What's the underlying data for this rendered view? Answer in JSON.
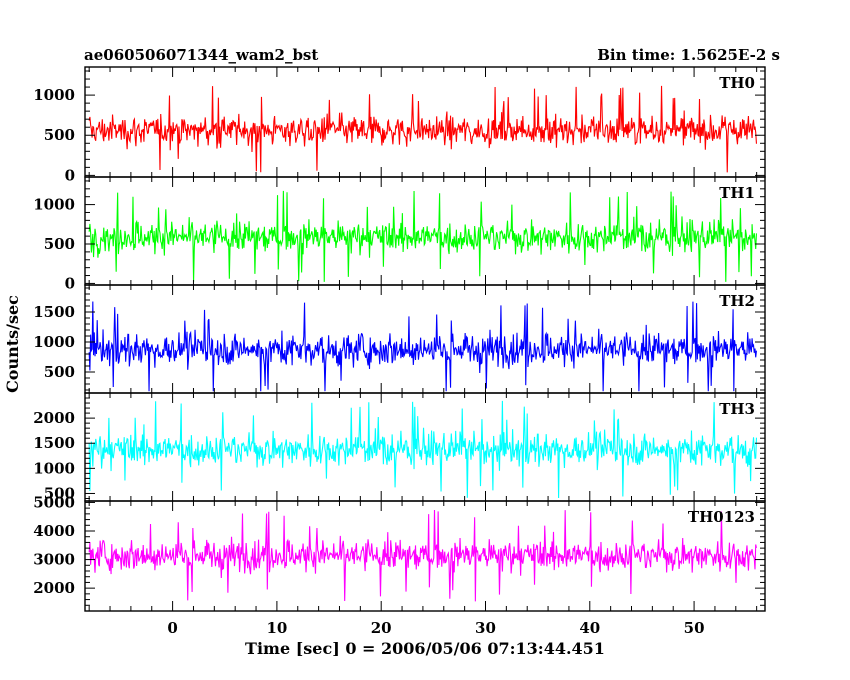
{
  "header": {
    "title": "ae060506071344_wam2_bst",
    "bin_time": "Bin time: 1.5625E-2 s"
  },
  "chart_data": {
    "type": "line",
    "title": "ae060506071344_wam2_bst",
    "xlabel": "Time [sec] 0 = 2006/05/06 07:13:44.451",
    "ylabel": "Counts/sec",
    "xlim": [
      -8.4,
      56.8
    ],
    "x_ticks": [
      0,
      10,
      20,
      30,
      40,
      50
    ],
    "x_tick_labels": [
      "0",
      "10",
      "20",
      "30",
      "40",
      "50"
    ],
    "x_start": -8.0,
    "x_end": 56.0,
    "grid": false,
    "panels": [
      {
        "name": "TH0",
        "color": "#ff0000",
        "ylim": [
          -20,
          1350
        ],
        "y_ticks": [
          0,
          500,
          1000
        ],
        "y_tick_labels": [
          "0",
          "500",
          "1000"
        ],
        "mean": 560,
        "spread": 130,
        "min": 20,
        "max": 1350
      },
      {
        "name": "TH1",
        "color": "#00ff00",
        "ylim": [
          -20,
          1350
        ],
        "y_ticks": [
          0,
          500,
          1000
        ],
        "y_tick_labels": [
          "0",
          "500",
          "1000"
        ],
        "mean": 590,
        "spread": 140,
        "min": 20,
        "max": 1350
      },
      {
        "name": "TH2",
        "color": "#0000ff",
        "ylim": [
          150,
          1950
        ],
        "y_ticks": [
          500,
          1000,
          1500
        ],
        "y_tick_labels": [
          "500",
          "1000",
          "1500"
        ],
        "mean": 880,
        "spread": 190,
        "min": 180,
        "max": 1950
      },
      {
        "name": "TH3",
        "color": "#00ffff",
        "ylim": [
          350,
          2500
        ],
        "y_ticks": [
          500,
          1000,
          1500,
          2000
        ],
        "y_tick_labels": [
          "500",
          "1000",
          "1500",
          "2000"
        ],
        "mean": 1380,
        "spread": 230,
        "min": 380,
        "max": 2500
      },
      {
        "name": "TH0123",
        "color": "#ff00ff",
        "ylim": [
          1200,
          5050
        ],
        "y_ticks": [
          2000,
          3000,
          4000,
          5000
        ],
        "y_tick_labels": [
          "2000",
          "3000",
          "4000",
          "5000"
        ],
        "mean": 3150,
        "spread": 380,
        "min": 1300,
        "max": 5050
      }
    ]
  }
}
